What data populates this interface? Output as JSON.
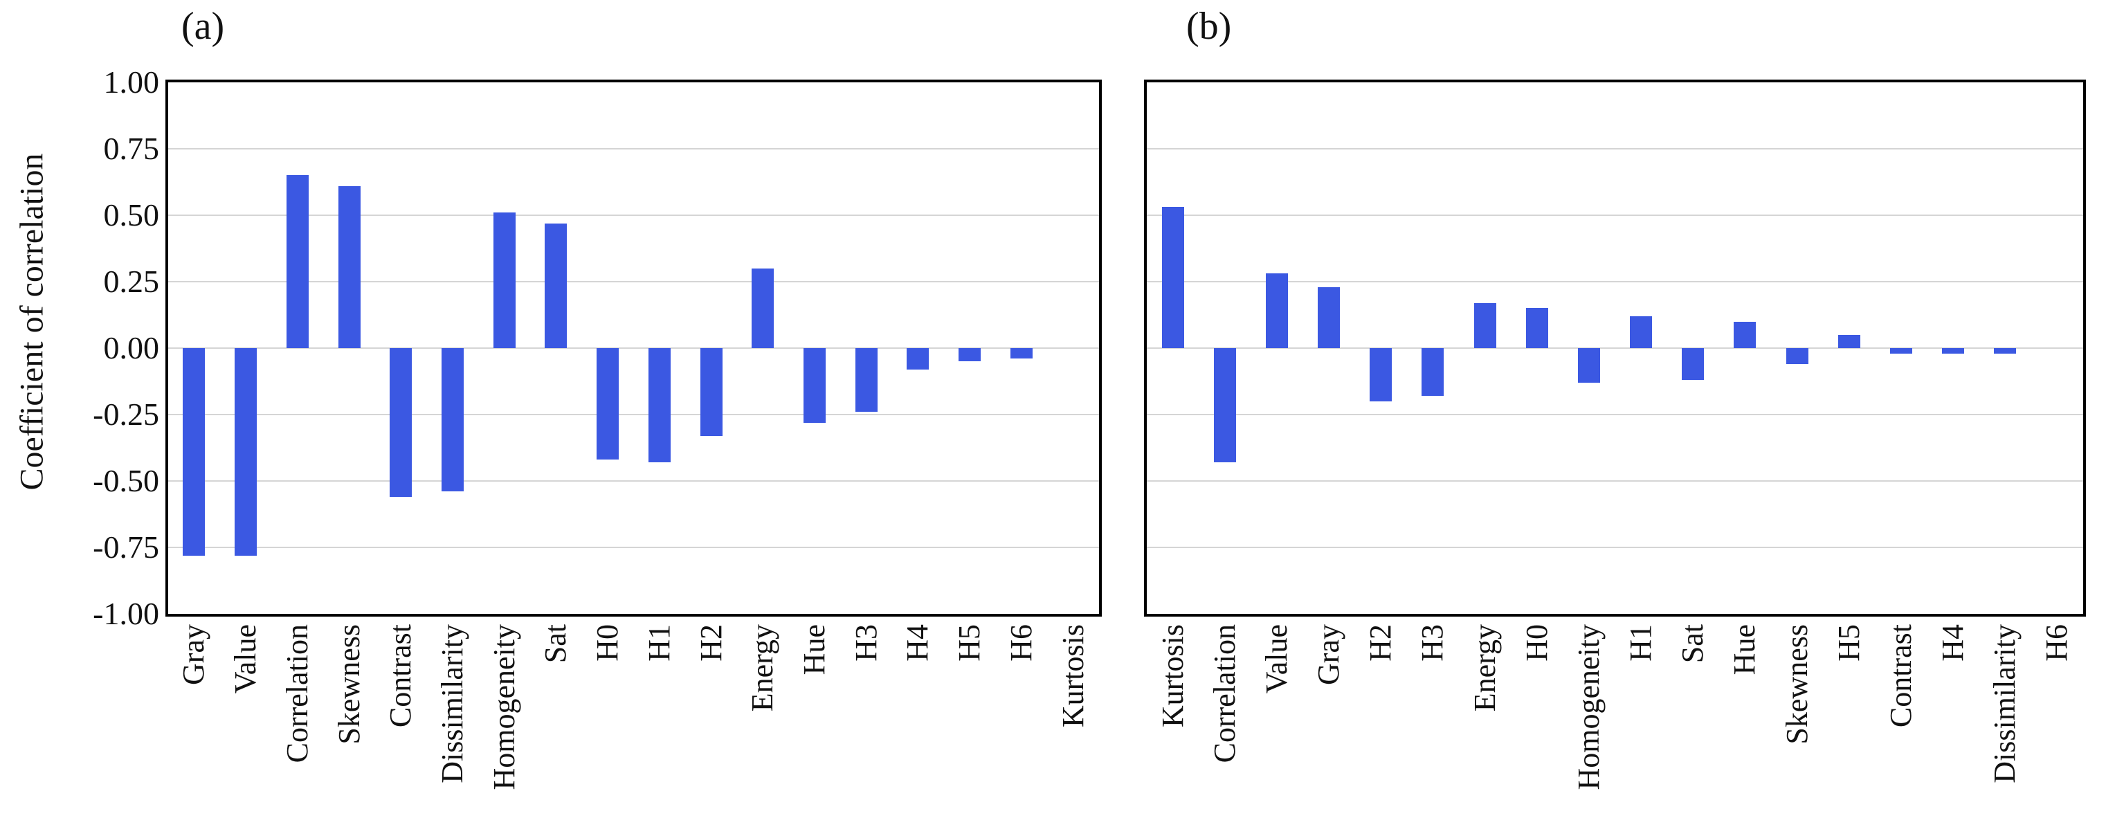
{
  "figure": {
    "ylabel": "Coefficient of correlation",
    "bar_color": "#3b58e2",
    "gridline_color": "#d5d5d5",
    "border_color": "#000000",
    "yticks": [
      "1.00",
      "0.75",
      "0.50",
      "0.25",
      "0.00",
      "-0.25",
      "-0.50",
      "-0.75",
      "-1.00"
    ]
  },
  "chart_data": [
    {
      "type": "bar",
      "title": "(a)",
      "ylabel": "Coefficient of correlation",
      "ylim": [
        -1.0,
        1.0
      ],
      "grid": true,
      "legend": false,
      "categories": [
        "Gray",
        "Value",
        "Correlation",
        "Skewness",
        "Contrast",
        "Dissimilarity",
        "Homogeneity",
        "Sat",
        "H0",
        "H1",
        "H2",
        "Energy",
        "Hue",
        "H3",
        "H4",
        "H5",
        "H6",
        "Kurtosis"
      ],
      "values": [
        -0.78,
        -0.78,
        0.65,
        0.61,
        -0.56,
        -0.54,
        0.51,
        0.47,
        -0.42,
        -0.43,
        -0.33,
        0.3,
        -0.28,
        -0.24,
        -0.08,
        -0.05,
        -0.04,
        0.0
      ]
    },
    {
      "type": "bar",
      "title": "(b)",
      "ylabel": "",
      "ylim": [
        -1.0,
        1.0
      ],
      "grid": true,
      "legend": false,
      "categories": [
        "Kurtosis",
        "Correlation",
        "Value",
        "Gray",
        "H2",
        "H3",
        "Energy",
        "H0",
        "Homogeneity",
        "H1",
        "Sat",
        "Hue",
        "Skewness",
        "H5",
        "Contrast",
        "H4",
        "Dissimilarity",
        "H6"
      ],
      "values": [
        0.53,
        -0.43,
        0.28,
        0.23,
        -0.2,
        -0.18,
        0.17,
        0.15,
        -0.13,
        0.12,
        -0.12,
        0.1,
        -0.06,
        0.05,
        -0.02,
        -0.02,
        -0.02,
        0.0
      ]
    }
  ]
}
